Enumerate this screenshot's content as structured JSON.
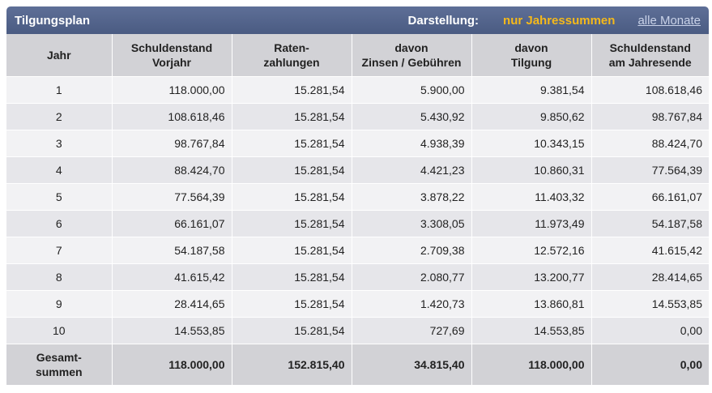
{
  "header": {
    "title": "Tilgungsplan",
    "display_label": "Darstellung:",
    "option_active": "nur Jahressummen",
    "option_link": "alle Monate"
  },
  "table": {
    "columns": [
      [
        "Jahr"
      ],
      [
        "Schuldenstand",
        "Vorjahr"
      ],
      [
        "Raten-",
        "zahlungen"
      ],
      [
        "davon",
        "Zinsen / Gebühren"
      ],
      [
        "davon",
        "Tilgung"
      ],
      [
        "Schuldenstand",
        "am Jahresende"
      ]
    ],
    "rows": [
      [
        "1",
        "118.000,00",
        "15.281,54",
        "5.900,00",
        "9.381,54",
        "108.618,46"
      ],
      [
        "2",
        "108.618,46",
        "15.281,54",
        "5.430,92",
        "9.850,62",
        "98.767,84"
      ],
      [
        "3",
        "98.767,84",
        "15.281,54",
        "4.938,39",
        "10.343,15",
        "88.424,70"
      ],
      [
        "4",
        "88.424,70",
        "15.281,54",
        "4.421,23",
        "10.860,31",
        "77.564,39"
      ],
      [
        "5",
        "77.564,39",
        "15.281,54",
        "3.878,22",
        "11.403,32",
        "66.161,07"
      ],
      [
        "6",
        "66.161,07",
        "15.281,54",
        "3.308,05",
        "11.973,49",
        "54.187,58"
      ],
      [
        "7",
        "54.187,58",
        "15.281,54",
        "2.709,38",
        "12.572,16",
        "41.615,42"
      ],
      [
        "8",
        "41.615,42",
        "15.281,54",
        "2.080,77",
        "13.200,77",
        "28.414,65"
      ],
      [
        "9",
        "28.414,65",
        "15.281,54",
        "1.420,73",
        "13.860,81",
        "14.553,85"
      ],
      [
        "10",
        "14.553,85",
        "15.281,54",
        "727,69",
        "14.553,85",
        "0,00"
      ]
    ],
    "totals": {
      "label": [
        "Gesamt-",
        "summen"
      ],
      "values": [
        "118.000,00",
        "152.815,40",
        "34.815,40",
        "118.000,00",
        "0,00"
      ]
    }
  }
}
